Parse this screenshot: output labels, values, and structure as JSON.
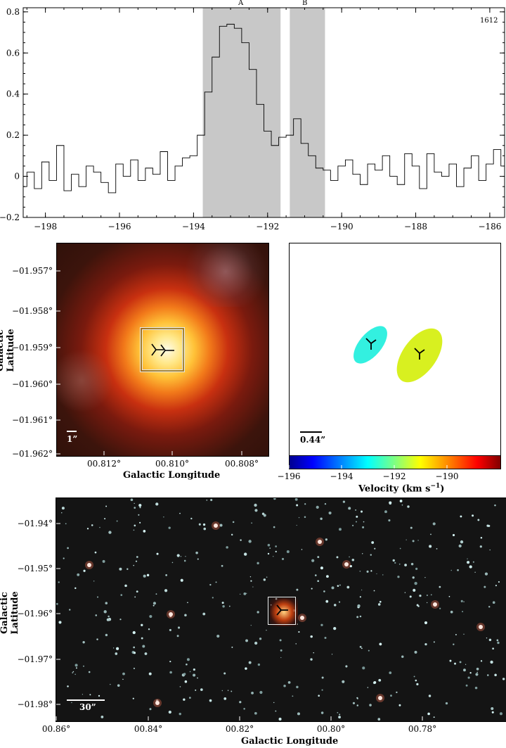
{
  "chart_data": [
    {
      "type": "line",
      "x": [
        -198.6,
        -198.4,
        -198.2,
        -198.0,
        -197.8,
        -197.6,
        -197.4,
        -197.2,
        -197.0,
        -196.8,
        -196.6,
        -196.4,
        -196.2,
        -196.0,
        -195.8,
        -195.6,
        -195.4,
        -195.2,
        -195.0,
        -194.8,
        -194.6,
        -194.4,
        -194.2,
        -194.0,
        -193.8,
        -193.6,
        -193.4,
        -193.2,
        -193.0,
        -192.8,
        -192.6,
        -192.4,
        -192.2,
        -192.0,
        -191.8,
        -191.6,
        -191.4,
        -191.2,
        -191.0,
        -190.8,
        -190.6,
        -190.4,
        -190.2,
        -190.0,
        -189.8,
        -189.6,
        -189.4,
        -189.2,
        -189.0,
        -188.8,
        -188.6,
        -188.4,
        -188.2,
        -188.0,
        -187.8,
        -187.6,
        -187.4,
        -187.2,
        -187.0,
        -186.8,
        -186.6,
        -186.4,
        -186.2,
        -186.0,
        -185.8,
        -185.6
      ],
      "y": [
        -0.05,
        0.02,
        -0.06,
        0.07,
        -0.02,
        0.15,
        -0.07,
        0.01,
        -0.05,
        0.05,
        0.02,
        -0.03,
        -0.08,
        0.06,
        0.0,
        0.08,
        -0.02,
        0.04,
        0.01,
        0.12,
        -0.02,
        0.05,
        0.09,
        0.1,
        0.2,
        0.41,
        0.58,
        0.73,
        0.74,
        0.72,
        0.65,
        0.52,
        0.35,
        0.22,
        0.15,
        0.19,
        0.2,
        0.28,
        0.16,
        0.1,
        0.04,
        0.03,
        -0.02,
        0.05,
        0.08,
        0.01,
        -0.04,
        0.06,
        0.03,
        0.1,
        0.0,
        -0.04,
        0.11,
        0.05,
        -0.06,
        0.11,
        0.02,
        0.0,
        0.06,
        -0.05,
        0.04,
        0.1,
        -0.02,
        0.06,
        0.13,
        0.05
      ],
      "series": [
        {
          "values_ref": "y"
        }
      ],
      "xlim": [
        -198.6,
        -185.6
      ],
      "ylim": [
        -0.2,
        0.82
      ],
      "xticks": [
        -198,
        -196,
        -194,
        -192,
        -190,
        -188,
        -186
      ],
      "yticks": [
        -0.2,
        0,
        0.2,
        0.4,
        0.6,
        0.8
      ],
      "shaded_regions": [
        {
          "label": "A",
          "from": -193.75,
          "to": -191.65
        },
        {
          "label": "B",
          "from": -191.4,
          "to": -190.45
        }
      ],
      "annotation": "1612",
      "grid": false
    },
    {
      "type": "heatmap",
      "xticks": [
        "00.812°",
        "00.810°",
        "00.808°"
      ],
      "yticks": [
        "−01.957°",
        "−01.958°",
        "−01.959°",
        "−01.960°",
        "−01.961°",
        "−01.962°"
      ],
      "xlabel": "Galactic Longitude",
      "ylabel": "Galactic Latitude",
      "scalebar": "1”"
    },
    {
      "type": "scatter",
      "points": [
        {
          "velocity": -192.9,
          "color": "#33f0e0"
        },
        {
          "velocity": -191.0,
          "color": "#d8f020"
        }
      ],
      "scalebar": "0.44”",
      "colorbar": {
        "ticks": [
          "−196",
          "−194",
          "−192",
          "−190"
        ],
        "range": [
          -196.0,
          -188.0
        ],
        "label": "Velocity (km s",
        "label_sup": "−1",
        "label_end": ")"
      }
    },
    {
      "type": "heatmap",
      "xticks": [
        "00.86°",
        "00.84°",
        "00.82°",
        "00.80°",
        "00.78°"
      ],
      "yticks": [
        "−01.94°",
        "−01.95°",
        "−01.96°",
        "−01.97°",
        "−01.98°"
      ],
      "xlabel": "Galactic Longitude",
      "ylabel": "Galactic Latitude",
      "scalebar": "30”"
    }
  ]
}
